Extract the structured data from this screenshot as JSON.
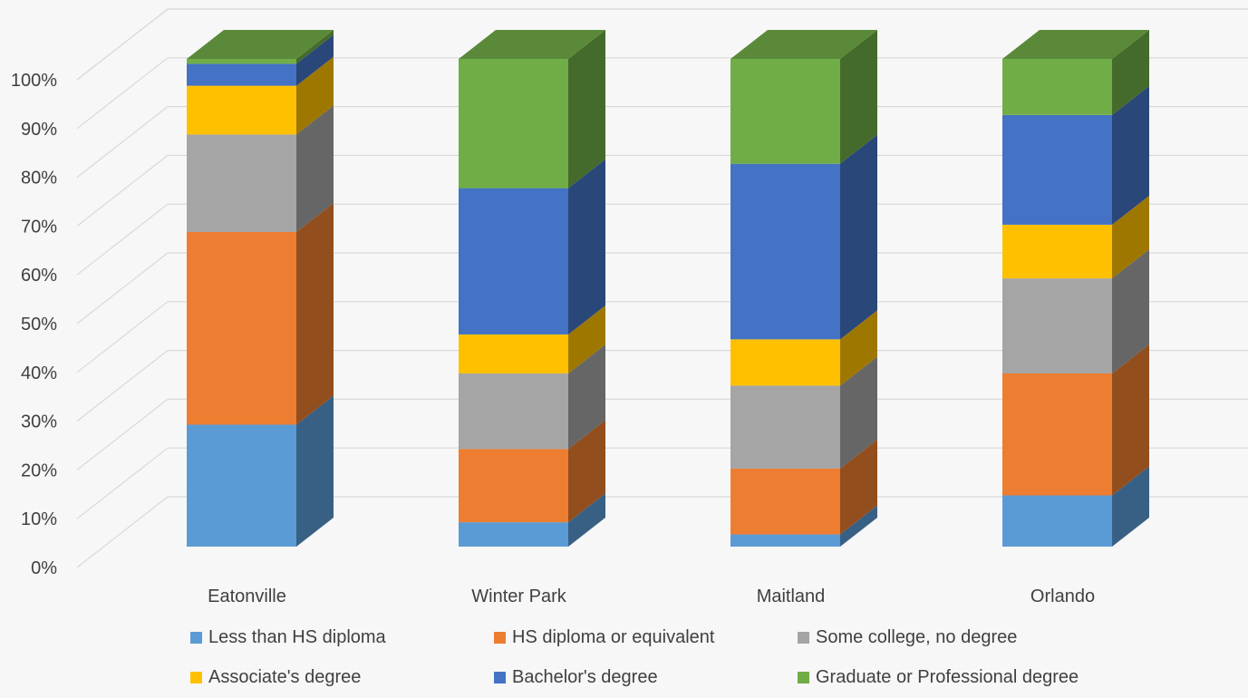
{
  "chart_data": {
    "type": "bar",
    "stacked": true,
    "percent_stacked": true,
    "three_d": true,
    "categories": [
      "Eatonville",
      "Winter Park",
      "Maitland",
      "Orlando"
    ],
    "series": [
      {
        "name": "Less than HS diploma",
        "color": "#5b9bd5",
        "values": [
          25,
          5,
          2.5,
          10.5
        ]
      },
      {
        "name": "HS diploma or equivalent",
        "color": "#ed7d31",
        "values": [
          39.5,
          15,
          13.5,
          25
        ]
      },
      {
        "name": "Some college, no degree",
        "color": "#a5a5a5",
        "values": [
          20,
          15.5,
          17,
          19.5
        ]
      },
      {
        "name": "Associate's degree",
        "color": "#ffc000",
        "values": [
          10,
          8,
          9.5,
          11
        ]
      },
      {
        "name": "Bachelor's degree",
        "color": "#4472c4",
        "values": [
          4.5,
          30,
          36,
          22.5
        ]
      },
      {
        "name": "Graduate or Professional degree",
        "color": "#70ad47",
        "values": [
          1,
          26.5,
          21.5,
          11.5
        ]
      }
    ],
    "yticks": [
      "0%",
      "10%",
      "20%",
      "30%",
      "40%",
      "50%",
      "60%",
      "70%",
      "80%",
      "90%",
      "100%"
    ],
    "ylim": [
      0,
      100
    ],
    "title": "",
    "xlabel": "",
    "ylabel": "",
    "grid": true,
    "legend_position": "bottom"
  }
}
